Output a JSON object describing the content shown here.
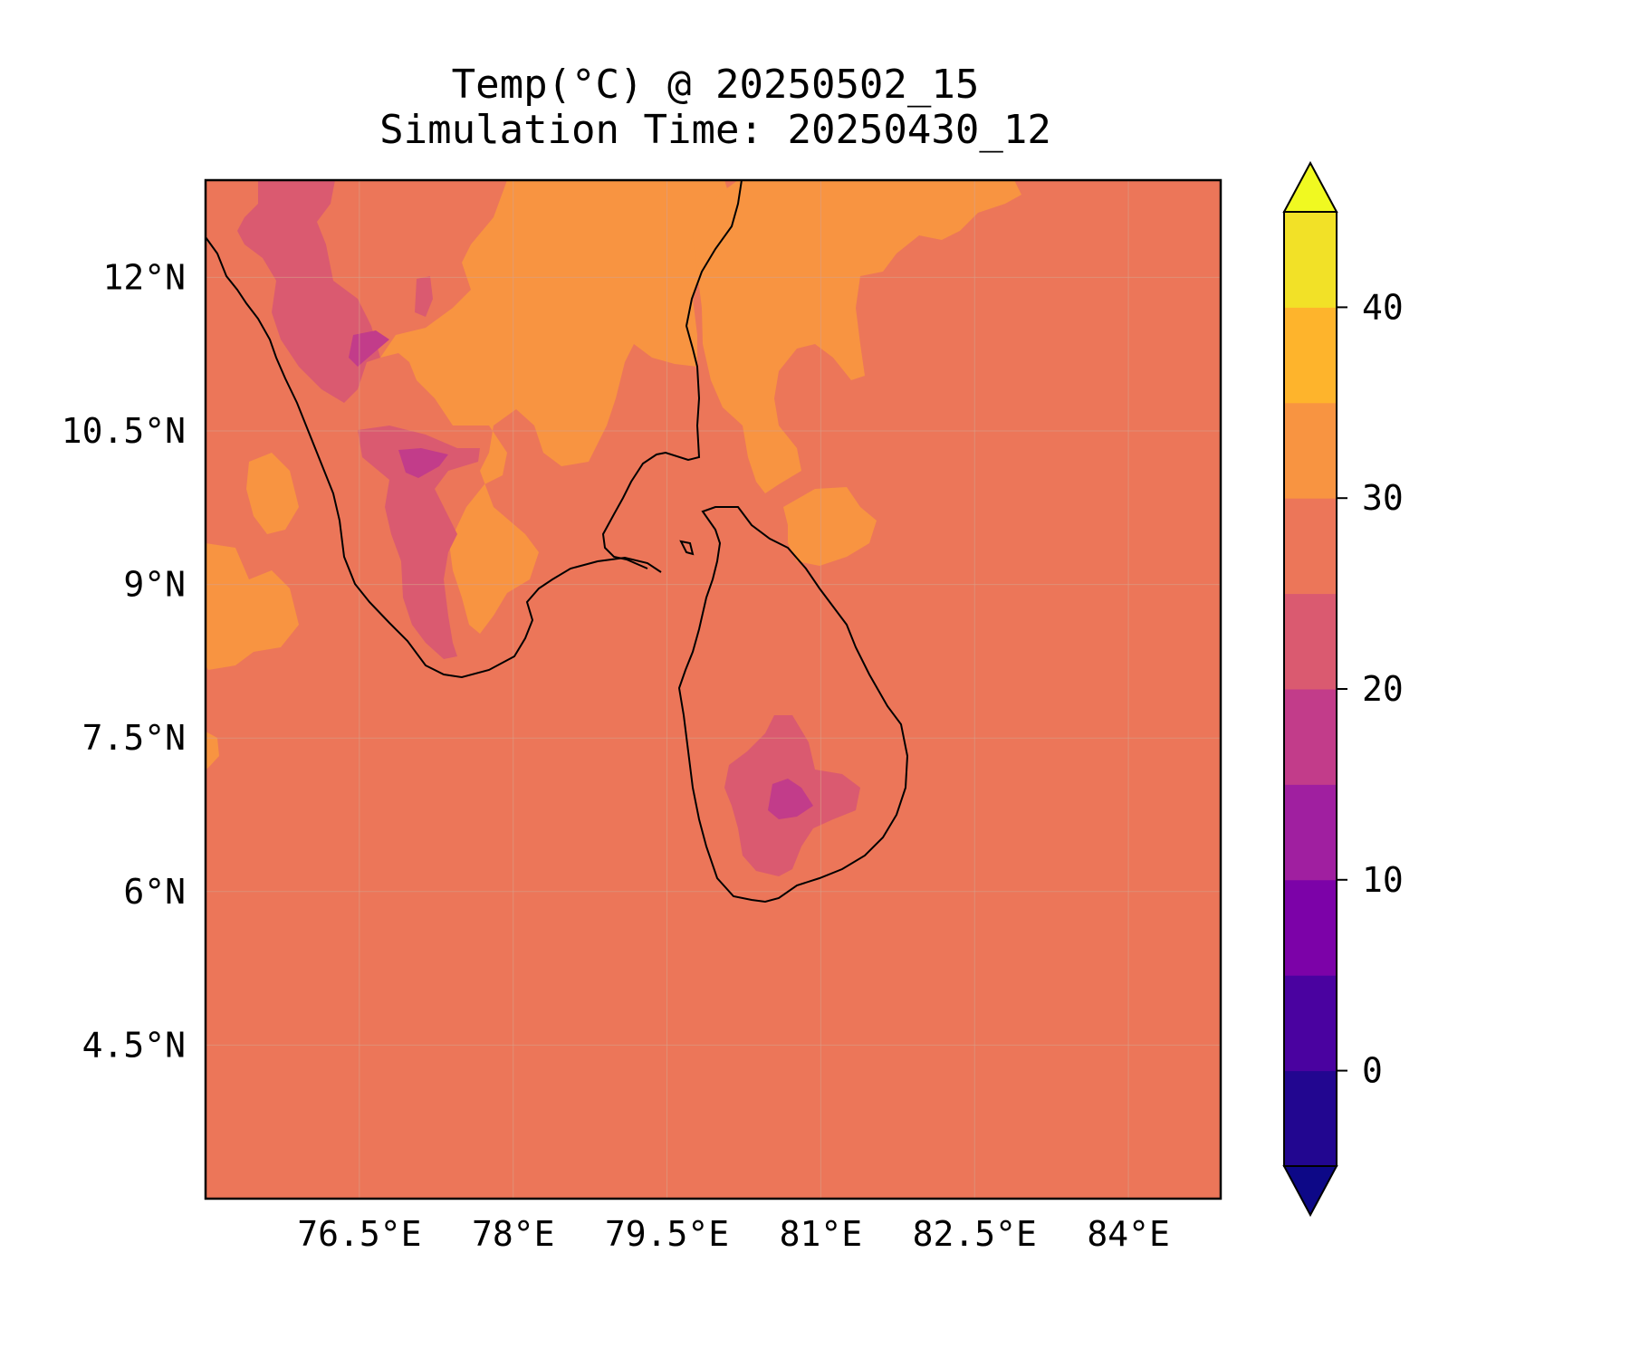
{
  "figure": {
    "title_line1": "Temp(°C) @ 20250502_15",
    "title_line2": "Simulation Time: 20250430_12"
  },
  "map": {
    "lon_range": [
      75.0,
      84.9
    ],
    "lat_range": [
      3.0,
      12.95
    ],
    "background_level": "25-30",
    "x_ticks": [
      "76.5°E",
      "78°E",
      "79.5°E",
      "81°E",
      "82.5°E",
      "84°E"
    ],
    "x_tick_values": [
      76.5,
      78,
      79.5,
      81,
      82.5,
      84
    ],
    "y_ticks": [
      "12°N",
      "10.5°N",
      "9°N",
      "7.5°N",
      "6°N",
      "4.5°N"
    ],
    "y_tick_values": [
      12,
      10.5,
      9,
      7.5,
      6,
      4.5
    ],
    "grid": true
  },
  "colorbar": {
    "colormap": "plasma",
    "levels": [
      -5,
      0,
      5,
      10,
      15,
      20,
      25,
      30,
      35,
      40,
      45
    ],
    "extend": "both",
    "colors": [
      "#220690",
      "#4a02a0",
      "#7c02a8",
      "#a01fa0",
      "#c23c8a",
      "#da5a70",
      "#ec7659",
      "#f89441",
      "#feb42c",
      "#f2e127"
    ],
    "under_color": "#0d0887",
    "over_color": "#f0f921",
    "tick_labels": [
      "0",
      "10",
      "20",
      "30",
      "40"
    ],
    "tick_values": [
      0,
      10,
      20,
      30,
      40
    ]
  },
  "regions": [
    {
      "name": "warm-tamilnadu-interior",
      "level": "30-35"
    },
    {
      "name": "warm-east-bay",
      "level": "30-35"
    },
    {
      "name": "cool-western-ghats",
      "level": "20-25"
    },
    {
      "name": "cold-ghats-core",
      "level": "15-20"
    },
    {
      "name": "cool-sri-lanka-highlands",
      "level": "20-25"
    },
    {
      "name": "cold-sri-lanka-peak",
      "level": "15-20"
    }
  ]
}
